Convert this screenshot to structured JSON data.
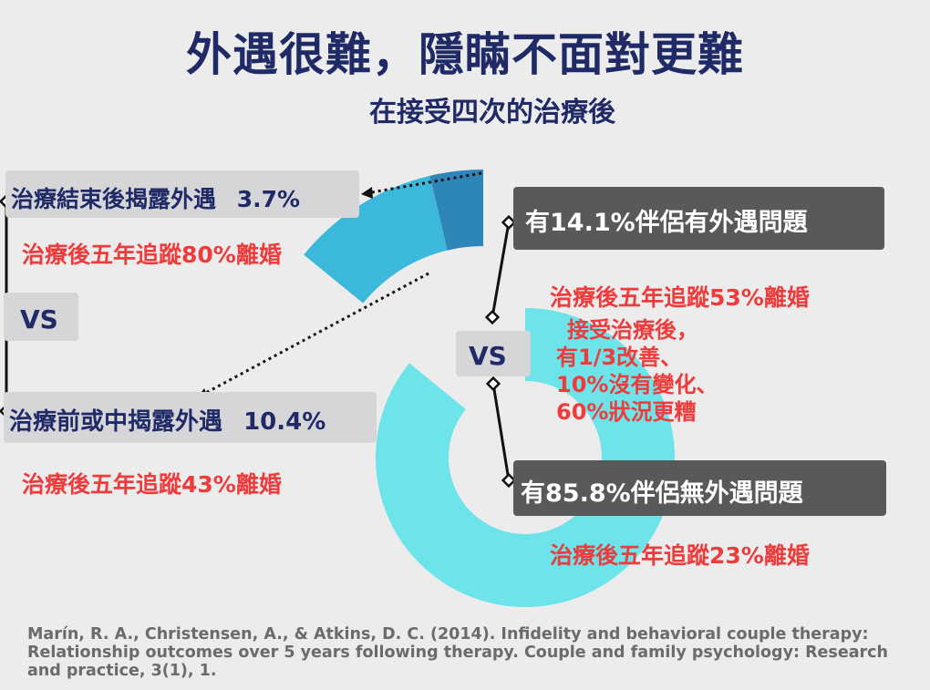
{
  "title": "外遇很難，隱瞞不面對更難",
  "subtitle": "在接受四次的治療後",
  "left": {
    "after_label": "治療結束後揭露外遇",
    "after_value": "3.7%",
    "after_result": "治療後五年追蹤80%離婚",
    "vs": "VS",
    "before_label": "治療前或中揭露外遇",
    "before_value": "10.4%",
    "before_result": "治療後五年追蹤43%離婚"
  },
  "right": {
    "affair_label": "有14.1%伴侶有外遇問題",
    "affair_result": "治療後五年追蹤53%離婚",
    "affair_details": [
      "接受治療後，",
      "有1/3改善、",
      "10%沒有變化、",
      "60%狀況更糟"
    ],
    "vs": "VS",
    "no_affair_label": "有85.8%伴侶無外遇問題",
    "no_affair_result": "治療後五年追蹤23%離婚"
  },
  "citation": [
    "Marín, R. A., Christensen, A., & Atkins, D. C. (2014). Infidelity and behavioral couple therapy:",
    "Relationship outcomes over 5 years following therapy. Couple and family psychology: Research",
    "and practice, 3(1), 1."
  ],
  "chart_data": {
    "type": "pie",
    "style": "donut",
    "categories": [
      "有外遇問題",
      "無外遇問題"
    ],
    "values": [
      14.1,
      85.8
    ],
    "exploded_slice": {
      "category": "有外遇問題",
      "breakdown": [
        {
          "name": "治療前或中揭露外遇",
          "value": 10.4
        },
        {
          "name": "治療結束後揭露外遇",
          "value": 3.7
        }
      ]
    },
    "colors": {
      "main_ring": "#6de3ea",
      "before_disclosure": "#3bb8da",
      "after_disclosure": "#2e86b8"
    }
  }
}
